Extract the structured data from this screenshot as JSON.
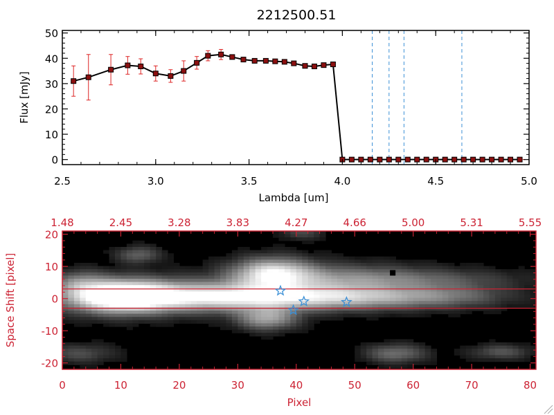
{
  "chart_data": [
    {
      "type": "line",
      "title": "2212500.51",
      "xlabel": "Lambda [um]",
      "ylabel": "Flux [mJy]",
      "xlim": [
        2.5,
        5.0
      ],
      "ylim": [
        -2,
        51
      ],
      "x_ticks": [
        "2.5",
        "3.0",
        "3.5",
        "4.0",
        "4.5",
        "5.0"
      ],
      "y_ticks": [
        "0",
        "10",
        "20",
        "30",
        "40",
        "50"
      ],
      "series": [
        {
          "name": "flux",
          "color": "#000000",
          "marker_color": "#8b1010",
          "errorbar_color": "#dd2222",
          "x": [
            2.56,
            2.64,
            2.76,
            2.85,
            2.92,
            3.0,
            3.08,
            3.15,
            3.22,
            3.28,
            3.35,
            3.41,
            3.47,
            3.53,
            3.59,
            3.64,
            3.69,
            3.74,
            3.8,
            3.85,
            3.9,
            3.95,
            4.0,
            4.05,
            4.1,
            4.15,
            4.2,
            4.25,
            4.3,
            4.35,
            4.4,
            4.45,
            4.5,
            4.55,
            4.6,
            4.65,
            4.7,
            4.75,
            4.8,
            4.85,
            4.9,
            4.95
          ],
          "y": [
            31,
            32.5,
            35.5,
            37.2,
            36.8,
            34,
            33,
            35,
            38.2,
            41,
            41.5,
            40.5,
            39.5,
            39,
            39,
            38.8,
            38.6,
            38,
            37,
            36.8,
            37.3,
            37.6,
            0,
            0,
            0,
            0,
            0,
            0,
            0,
            0,
            0,
            0,
            0,
            0,
            0,
            0,
            0,
            0,
            0,
            0,
            0,
            0
          ],
          "yerr": [
            6,
            9,
            6,
            3.5,
            3,
            3,
            2.5,
            4,
            2.5,
            2,
            2,
            0.5,
            0.3,
            0.3,
            0.3,
            0.3,
            0.3,
            0.3,
            0.3,
            0.3,
            0.3,
            0.3,
            0,
            0,
            0,
            0,
            0,
            0,
            0,
            0,
            0,
            0,
            0,
            0,
            0,
            0,
            0,
            0,
            0,
            0,
            0,
            0
          ]
        }
      ],
      "vlines": [
        4.16,
        4.25,
        4.33,
        4.64
      ],
      "vline_color": "#3a8fd6"
    },
    {
      "type": "heatmap",
      "xlabel": "Pixel",
      "ylabel": "Space Shift [pixel]",
      "xlim": [
        0,
        81
      ],
      "ylim": [
        -22,
        21
      ],
      "x_ticks": [
        "0",
        "10",
        "20",
        "30",
        "40",
        "50",
        "60",
        "70",
        "80"
      ],
      "y_ticks": [
        "-20",
        "-10",
        "0",
        "10",
        "20"
      ],
      "top_axis_ticks": [
        "1.48",
        "2.45",
        "3.28",
        "3.83",
        "4.27",
        "4.66",
        "5.00",
        "5.31",
        "5.55"
      ],
      "axis_color": "#cc2233",
      "hlines": [
        3,
        -3
      ],
      "stars": [
        {
          "x": 37.3,
          "y": 2.4
        },
        {
          "x": 41.3,
          "y": -0.9
        },
        {
          "x": 39.5,
          "y": -3.6
        },
        {
          "x": 48.6,
          "y": -1.1
        }
      ],
      "star_color": "#3a8fd6",
      "blobs": [
        {
          "cx": 10,
          "cy": 0.5,
          "sx": 6,
          "sy": 3.5,
          "a": 1.0
        },
        {
          "cx": 22,
          "cy": 0.5,
          "sx": 14,
          "sy": 3.2,
          "a": 0.7
        },
        {
          "cx": 40,
          "cy": 0,
          "sx": 14,
          "sy": 2.6,
          "a": 0.5
        },
        {
          "cx": 56,
          "cy": 0.3,
          "sx": 12,
          "sy": 2.4,
          "a": 0.3
        },
        {
          "cx": 36,
          "cy": 7.8,
          "sx": 4.5,
          "sy": 3.2,
          "a": 0.78
        },
        {
          "cx": 46,
          "cy": 6,
          "sx": 11,
          "sy": 3.2,
          "a": 0.38
        },
        {
          "cx": 62,
          "cy": 5.8,
          "sx": 12,
          "sy": 2.2,
          "a": 0.2
        },
        {
          "cx": 35,
          "cy": -6.5,
          "sx": 3.5,
          "sy": 2.4,
          "a": 0.55
        },
        {
          "cx": 13,
          "cy": 13.5,
          "sx": 2.5,
          "sy": 1.8,
          "a": 0.3
        },
        {
          "cx": 3,
          "cy": 5,
          "sx": 3,
          "sy": 2.5,
          "a": 0.3
        },
        {
          "cx": 3,
          "cy": -17.5,
          "sx": 4,
          "sy": 2,
          "a": 0.22
        },
        {
          "cx": 57,
          "cy": -17.5,
          "sx": 3.5,
          "sy": 2,
          "a": 0.35
        },
        {
          "cx": 75,
          "cy": -17,
          "sx": 3.5,
          "sy": 1.6,
          "a": 0.25
        },
        {
          "cx": 41,
          "cy": 20.5,
          "sx": 2.5,
          "sy": 1.5,
          "a": 0.2
        },
        {
          "cx": 67,
          "cy": 1,
          "sx": 6,
          "sy": 2.5,
          "a": 0.12
        }
      ],
      "dark_pixel": {
        "x": 56.5,
        "y": 8
      }
    }
  ]
}
